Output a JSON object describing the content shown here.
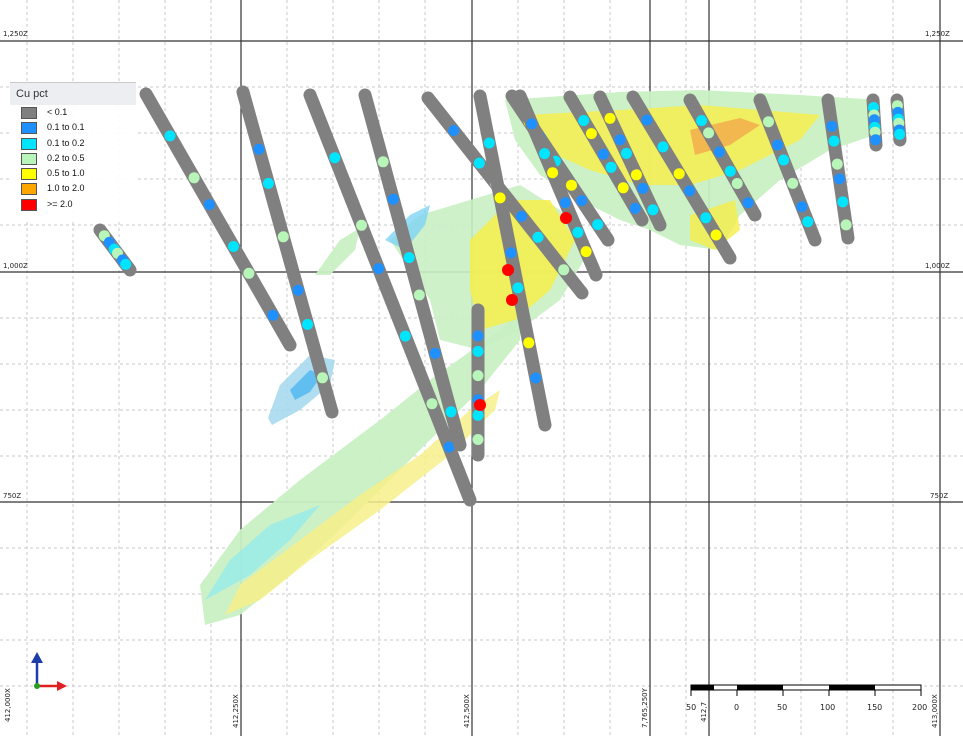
{
  "legend": {
    "title": "Cu pct",
    "items": [
      {
        "label": "< 0.1",
        "color": "#7f7f7f"
      },
      {
        "label": "0.1 to 0.1",
        "color": "#1e90ff"
      },
      {
        "label": "0.1 to 0.2",
        "color": "#00e5ff"
      },
      {
        "label": "0.2 to 0.5",
        "color": "#b8f5b8"
      },
      {
        "label": "0.5 to 1.0",
        "color": "#ffff00"
      },
      {
        "label": "1.0 to 2.0",
        "color": "#ffa500"
      },
      {
        "label": ">= 2.0",
        "color": "#ff0000"
      }
    ]
  },
  "grid_labels": {
    "elevation_1250": "1,250Z",
    "elevation_1000": "1,000Z",
    "elevation_750": "750Z",
    "easting_412250": "412,250X",
    "easting_412500": "412,500X",
    "easting_412750": "412,7",
    "easting_413000": "413,000X",
    "northing": "7,765,250Y",
    "corner_bottom_left": "412,000X"
  },
  "scale_bar": {
    "ticks": [
      "50",
      "0",
      "50",
      "100",
      "150",
      "200"
    ]
  },
  "colors": {
    "grid_major": "#333333",
    "grid_minor": "#c8c8c8",
    "drillhole": "#808080",
    "axis_up": "#1f3da8",
    "axis_right": "#e02020",
    "axis_out": "#20a020"
  }
}
